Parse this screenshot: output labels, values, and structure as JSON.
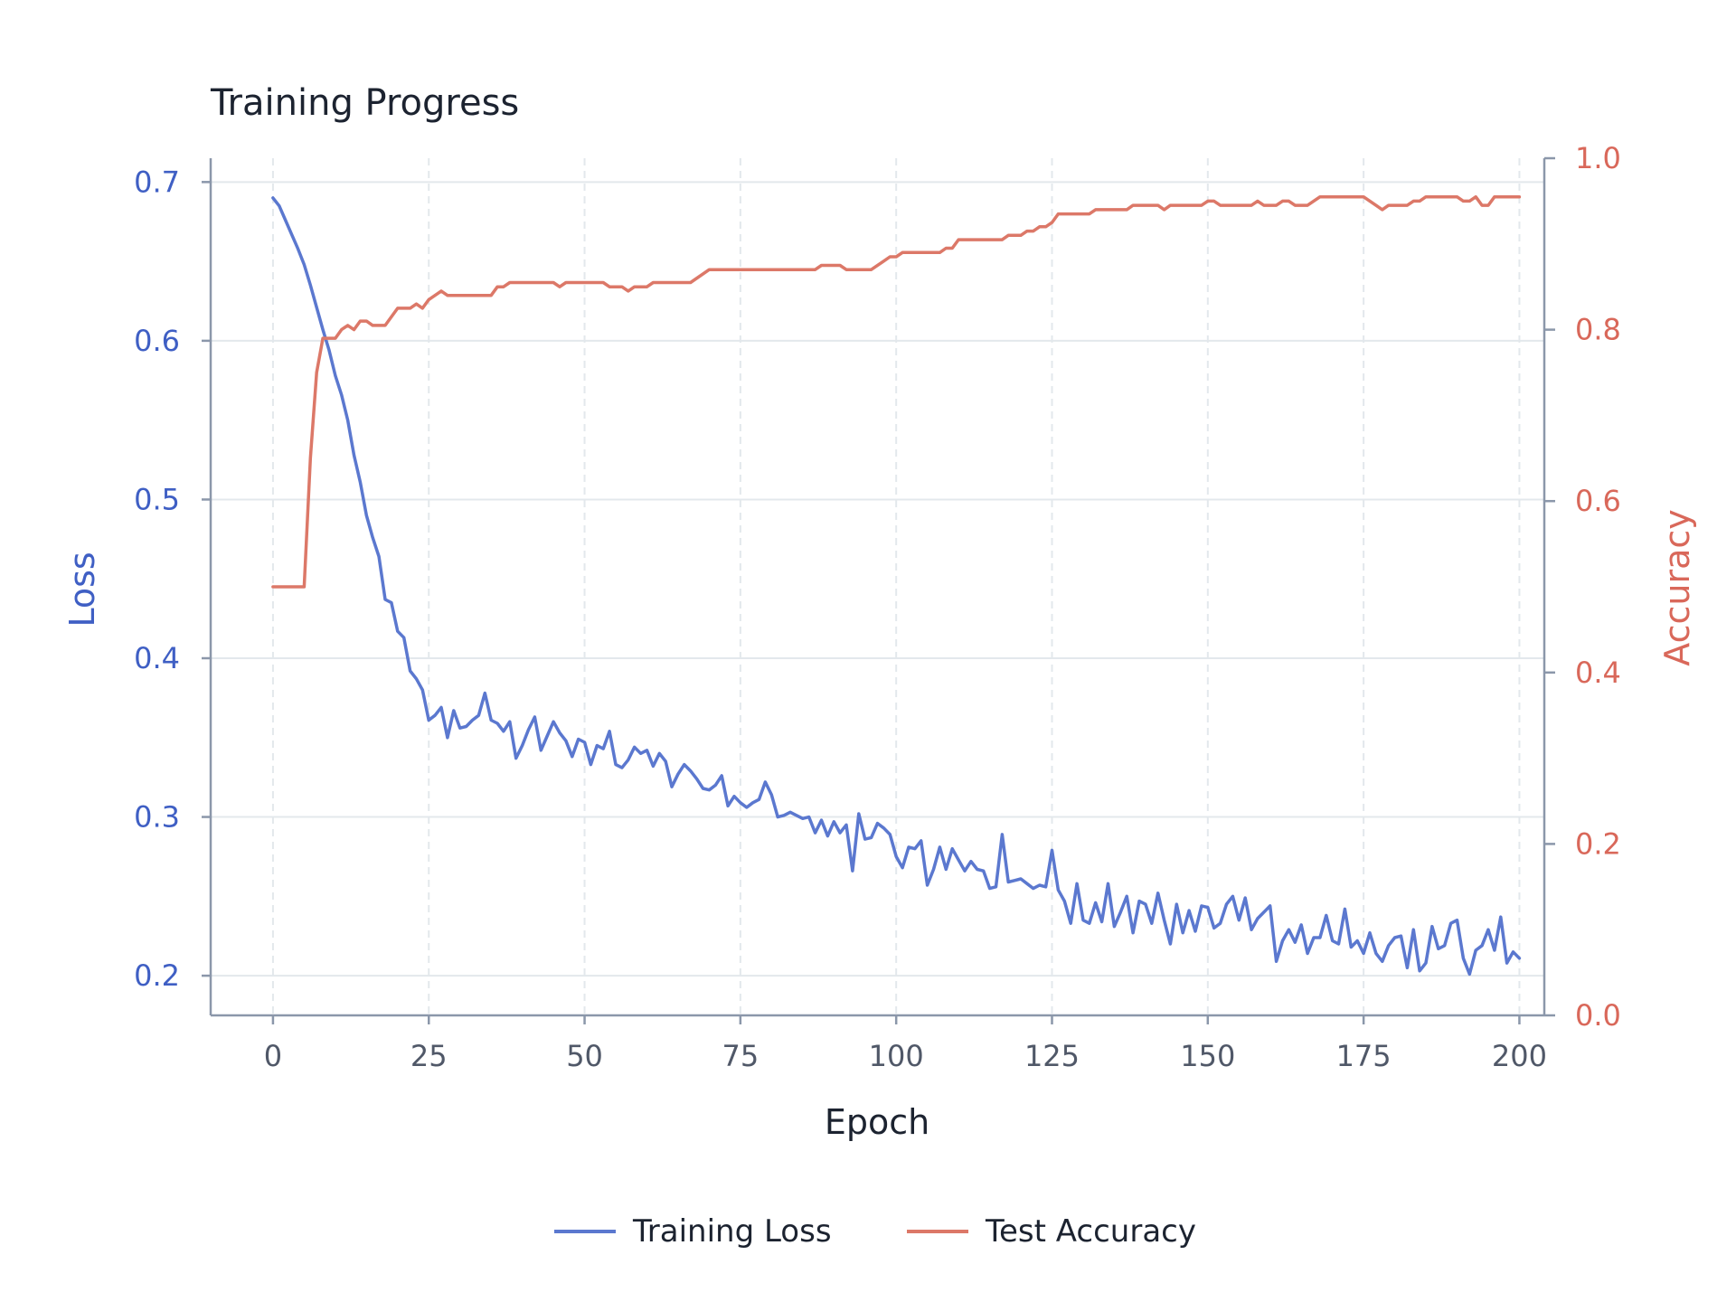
{
  "colors": {
    "loss": "#5b78cf",
    "accuracy": "#dc7868",
    "left_axis": "#3f5fc4",
    "right_axis": "#d9685a",
    "grid": "#e3e8ec",
    "axis_line": "#8b97aa"
  },
  "chart_data": {
    "type": "line",
    "title": "Training Progress",
    "xlabel": "Epoch",
    "ylabel_left": "Loss",
    "ylabel_right": "Accuracy",
    "xlim": [
      -10,
      204
    ],
    "ylim_left": [
      0.175,
      0.715
    ],
    "ylim_right": [
      0.0,
      1.0
    ],
    "x_ticks": [
      0,
      25,
      50,
      75,
      100,
      125,
      150,
      175,
      200
    ],
    "y_ticks_left": [
      0.2,
      0.3,
      0.4,
      0.5,
      0.6,
      0.7
    ],
    "y_ticks_right": [
      0.0,
      0.2,
      0.4,
      0.6,
      0.8,
      1.0
    ],
    "x_tick_labels": [
      "0",
      "25",
      "50",
      "75",
      "100",
      "125",
      "150",
      "175",
      "200"
    ],
    "y_tick_labels_left": [
      "0.2",
      "0.3",
      "0.4",
      "0.5",
      "0.6",
      "0.7"
    ],
    "y_tick_labels_right": [
      "0.0",
      "0.2",
      "0.4",
      "0.6",
      "0.8",
      "1.0"
    ],
    "grid": true,
    "legend_position": "bottom-center",
    "legend": [
      "Training Loss",
      "Test Accuracy"
    ],
    "series": [
      {
        "name": "Training Loss",
        "axis": "left",
        "points": [
          [
            0,
            0.69
          ],
          [
            1,
            0.685
          ],
          [
            2,
            0.676
          ],
          [
            3,
            0.667
          ],
          [
            4,
            0.658
          ],
          [
            5,
            0.648
          ],
          [
            6,
            0.635
          ],
          [
            7,
            0.621
          ],
          [
            8,
            0.607
          ],
          [
            9,
            0.594
          ],
          [
            10,
            0.578
          ],
          [
            11,
            0.566
          ],
          [
            12,
            0.55
          ],
          [
            13,
            0.528
          ],
          [
            14,
            0.511
          ],
          [
            15,
            0.49
          ],
          [
            16,
            0.476
          ],
          [
            17,
            0.464
          ],
          [
            18,
            0.437
          ],
          [
            19,
            0.435
          ],
          [
            20,
            0.417
          ],
          [
            21,
            0.413
          ],
          [
            22,
            0.392
          ],
          [
            23,
            0.387
          ],
          [
            24,
            0.38
          ],
          [
            25,
            0.361
          ],
          [
            26,
            0.364
          ],
          [
            27,
            0.369
          ],
          [
            28,
            0.35
          ],
          [
            29,
            0.367
          ],
          [
            30,
            0.356
          ],
          [
            31,
            0.357
          ],
          [
            32,
            0.361
          ],
          [
            33,
            0.364
          ],
          [
            34,
            0.378
          ],
          [
            35,
            0.361
          ],
          [
            36,
            0.359
          ],
          [
            37,
            0.354
          ],
          [
            38,
            0.36
          ],
          [
            39,
            0.337
          ],
          [
            40,
            0.345
          ],
          [
            41,
            0.355
          ],
          [
            42,
            0.363
          ],
          [
            43,
            0.342
          ],
          [
            44,
            0.351
          ],
          [
            45,
            0.36
          ],
          [
            46,
            0.353
          ],
          [
            47,
            0.348
          ],
          [
            48,
            0.338
          ],
          [
            49,
            0.349
          ],
          [
            50,
            0.347
          ],
          [
            51,
            0.333
          ],
          [
            52,
            0.345
          ],
          [
            53,
            0.343
          ],
          [
            54,
            0.354
          ],
          [
            55,
            0.333
          ],
          [
            56,
            0.331
          ],
          [
            57,
            0.336
          ],
          [
            58,
            0.344
          ],
          [
            59,
            0.34
          ],
          [
            60,
            0.342
          ],
          [
            61,
            0.332
          ],
          [
            62,
            0.34
          ],
          [
            63,
            0.335
          ],
          [
            64,
            0.319
          ],
          [
            65,
            0.327
          ],
          [
            66,
            0.333
          ],
          [
            67,
            0.329
          ],
          [
            68,
            0.324
          ],
          [
            69,
            0.318
          ],
          [
            70,
            0.317
          ],
          [
            71,
            0.32
          ],
          [
            72,
            0.326
          ],
          [
            73,
            0.307
          ],
          [
            74,
            0.313
          ],
          [
            75,
            0.309
          ],
          [
            76,
            0.306
          ],
          [
            77,
            0.309
          ],
          [
            78,
            0.311
          ],
          [
            79,
            0.322
          ],
          [
            80,
            0.314
          ],
          [
            81,
            0.3
          ],
          [
            82,
            0.301
          ],
          [
            83,
            0.303
          ],
          [
            84,
            0.301
          ],
          [
            85,
            0.299
          ],
          [
            86,
            0.3
          ],
          [
            87,
            0.29
          ],
          [
            88,
            0.298
          ],
          [
            89,
            0.288
          ],
          [
            90,
            0.297
          ],
          [
            91,
            0.29
          ],
          [
            92,
            0.295
          ],
          [
            93,
            0.266
          ],
          [
            94,
            0.302
          ],
          [
            95,
            0.286
          ],
          [
            96,
            0.287
          ],
          [
            97,
            0.296
          ],
          [
            98,
            0.293
          ],
          [
            99,
            0.289
          ],
          [
            100,
            0.275
          ],
          [
            101,
            0.268
          ],
          [
            102,
            0.281
          ],
          [
            103,
            0.28
          ],
          [
            104,
            0.285
          ],
          [
            105,
            0.257
          ],
          [
            106,
            0.267
          ],
          [
            107,
            0.281
          ],
          [
            108,
            0.267
          ],
          [
            109,
            0.28
          ],
          [
            110,
            0.273
          ],
          [
            111,
            0.266
          ],
          [
            112,
            0.272
          ],
          [
            113,
            0.267
          ],
          [
            114,
            0.266
          ],
          [
            115,
            0.255
          ],
          [
            116,
            0.256
          ],
          [
            117,
            0.289
          ],
          [
            118,
            0.259
          ],
          [
            119,
            0.26
          ],
          [
            120,
            0.261
          ],
          [
            121,
            0.258
          ],
          [
            122,
            0.255
          ],
          [
            123,
            0.257
          ],
          [
            124,
            0.256
          ],
          [
            125,
            0.279
          ],
          [
            126,
            0.254
          ],
          [
            127,
            0.247
          ],
          [
            128,
            0.233
          ],
          [
            129,
            0.258
          ],
          [
            130,
            0.235
          ],
          [
            131,
            0.233
          ],
          [
            132,
            0.246
          ],
          [
            133,
            0.234
          ],
          [
            134,
            0.258
          ],
          [
            135,
            0.231
          ],
          [
            136,
            0.24
          ],
          [
            137,
            0.25
          ],
          [
            138,
            0.227
          ],
          [
            139,
            0.247
          ],
          [
            140,
            0.245
          ],
          [
            141,
            0.233
          ],
          [
            142,
            0.252
          ],
          [
            143,
            0.235
          ],
          [
            144,
            0.22
          ],
          [
            145,
            0.245
          ],
          [
            146,
            0.227
          ],
          [
            147,
            0.241
          ],
          [
            148,
            0.228
          ],
          [
            149,
            0.244
          ],
          [
            150,
            0.243
          ],
          [
            151,
            0.23
          ],
          [
            152,
            0.233
          ],
          [
            153,
            0.245
          ],
          [
            154,
            0.25
          ],
          [
            155,
            0.235
          ],
          [
            156,
            0.249
          ],
          [
            157,
            0.229
          ],
          [
            158,
            0.236
          ],
          [
            159,
            0.24
          ],
          [
            160,
            0.244
          ],
          [
            161,
            0.209
          ],
          [
            162,
            0.222
          ],
          [
            163,
            0.229
          ],
          [
            164,
            0.221
          ],
          [
            165,
            0.232
          ],
          [
            166,
            0.214
          ],
          [
            167,
            0.224
          ],
          [
            168,
            0.224
          ],
          [
            169,
            0.238
          ],
          [
            170,
            0.222
          ],
          [
            171,
            0.22
          ],
          [
            172,
            0.242
          ],
          [
            173,
            0.218
          ],
          [
            174,
            0.222
          ],
          [
            175,
            0.214
          ],
          [
            176,
            0.227
          ],
          [
            177,
            0.214
          ],
          [
            178,
            0.209
          ],
          [
            179,
            0.219
          ],
          [
            180,
            0.224
          ],
          [
            181,
            0.225
          ],
          [
            182,
            0.205
          ],
          [
            183,
            0.229
          ],
          [
            184,
            0.203
          ],
          [
            185,
            0.208
          ],
          [
            186,
            0.231
          ],
          [
            187,
            0.217
          ],
          [
            188,
            0.219
          ],
          [
            189,
            0.233
          ],
          [
            190,
            0.235
          ],
          [
            191,
            0.211
          ],
          [
            192,
            0.201
          ],
          [
            193,
            0.216
          ],
          [
            194,
            0.219
          ],
          [
            195,
            0.229
          ],
          [
            196,
            0.216
          ],
          [
            197,
            0.237
          ],
          [
            198,
            0.208
          ],
          [
            199,
            0.215
          ],
          [
            200,
            0.211
          ]
        ]
      },
      {
        "name": "Test Accuracy",
        "axis": "right",
        "points": [
          [
            0,
            0.5
          ],
          [
            5,
            0.5
          ],
          [
            6,
            0.65
          ],
          [
            7,
            0.75
          ],
          [
            8,
            0.79
          ],
          [
            9,
            0.79
          ],
          [
            10,
            0.79
          ],
          [
            11,
            0.8
          ],
          [
            12,
            0.805
          ],
          [
            13,
            0.8
          ],
          [
            14,
            0.81
          ],
          [
            15,
            0.81
          ],
          [
            16,
            0.805
          ],
          [
            17,
            0.805
          ],
          [
            18,
            0.805
          ],
          [
            19,
            0.815
          ],
          [
            20,
            0.825
          ],
          [
            21,
            0.825
          ],
          [
            22,
            0.825
          ],
          [
            23,
            0.83
          ],
          [
            24,
            0.825
          ],
          [
            25,
            0.835
          ],
          [
            26,
            0.84
          ],
          [
            27,
            0.845
          ],
          [
            28,
            0.84
          ],
          [
            30,
            0.84
          ],
          [
            35,
            0.84
          ],
          [
            36,
            0.85
          ],
          [
            37,
            0.85
          ],
          [
            38,
            0.855
          ],
          [
            45,
            0.855
          ],
          [
            46,
            0.85
          ],
          [
            47,
            0.855
          ],
          [
            53,
            0.855
          ],
          [
            54,
            0.85
          ],
          [
            56,
            0.85
          ],
          [
            57,
            0.845
          ],
          [
            58,
            0.85
          ],
          [
            60,
            0.85
          ],
          [
            61,
            0.855
          ],
          [
            67,
            0.855
          ],
          [
            70,
            0.87
          ],
          [
            72,
            0.87
          ],
          [
            87,
            0.87
          ],
          [
            88,
            0.875
          ],
          [
            91,
            0.875
          ],
          [
            92,
            0.87
          ],
          [
            96,
            0.87
          ],
          [
            98,
            0.88
          ],
          [
            99,
            0.885
          ],
          [
            100,
            0.885
          ],
          [
            101,
            0.89
          ],
          [
            107,
            0.89
          ],
          [
            108,
            0.895
          ],
          [
            109,
            0.895
          ],
          [
            110,
            0.905
          ],
          [
            117,
            0.905
          ],
          [
            118,
            0.91
          ],
          [
            120,
            0.91
          ],
          [
            121,
            0.915
          ],
          [
            122,
            0.915
          ],
          [
            123,
            0.92
          ],
          [
            124,
            0.92
          ],
          [
            125,
            0.925
          ],
          [
            126,
            0.935
          ],
          [
            131,
            0.935
          ],
          [
            132,
            0.94
          ],
          [
            137,
            0.94
          ],
          [
            138,
            0.945
          ],
          [
            142,
            0.945
          ],
          [
            143,
            0.94
          ],
          [
            144,
            0.945
          ],
          [
            149,
            0.945
          ],
          [
            150,
            0.95
          ],
          [
            151,
            0.95
          ],
          [
            152,
            0.945
          ],
          [
            157,
            0.945
          ],
          [
            158,
            0.95
          ],
          [
            159,
            0.945
          ],
          [
            161,
            0.945
          ],
          [
            162,
            0.95
          ],
          [
            163,
            0.95
          ],
          [
            164,
            0.945
          ],
          [
            166,
            0.945
          ],
          [
            168,
            0.955
          ],
          [
            175,
            0.955
          ],
          [
            178,
            0.94
          ],
          [
            179,
            0.945
          ],
          [
            182,
            0.945
          ],
          [
            183,
            0.95
          ],
          [
            184,
            0.95
          ],
          [
            185,
            0.955
          ],
          [
            190,
            0.955
          ],
          [
            191,
            0.95
          ],
          [
            192,
            0.95
          ],
          [
            193,
            0.955
          ],
          [
            194,
            0.945
          ],
          [
            195,
            0.945
          ],
          [
            196,
            0.955
          ],
          [
            200,
            0.955
          ]
        ]
      }
    ]
  }
}
